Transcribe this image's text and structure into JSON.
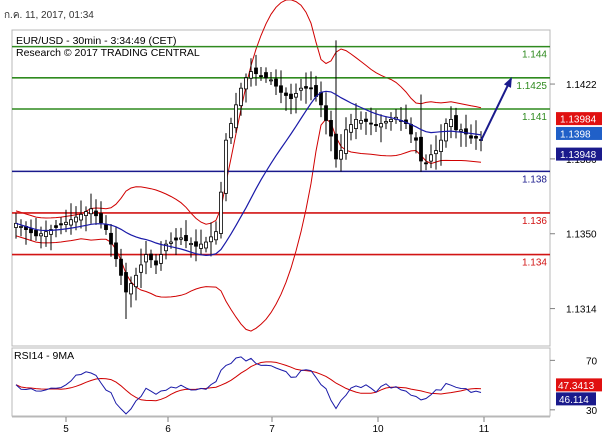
{
  "timestamp": "ก.ค. 11, 2017, 01:34",
  "colors": {
    "candle": "#000000",
    "ma": "#1a1aa8",
    "bands": "#d00000",
    "support": "#1a1a8c",
    "resistance_green": "#2f8a1f",
    "resistance_red": "#d21414",
    "arrow": "#1a1a8c",
    "rsi": "#1a1aa8",
    "rsi_signal": "#d00000",
    "tag_red": "#e01010",
    "tag_blue": "#2060c8",
    "tag_navy": "#1a1a8c"
  },
  "chart_data": {
    "type": "candlestick",
    "instrument": "EUR/USD - 30min - 3:34:49 (CET)",
    "source": "Research © 2017 TRADING CENTRAL",
    "xlabel": "",
    "ylabel": "",
    "ylim": [
      1.1296,
      1.1448
    ],
    "y_ticks": [
      "1.1422",
      "1.1386",
      "1.1350",
      "1.1314"
    ],
    "x_ticks": [
      "5",
      "6",
      "7",
      "10",
      "11"
    ],
    "levels": [
      {
        "value": 1.144,
        "label": "1.144",
        "kind": "resistance_green"
      },
      {
        "value": 1.1425,
        "label": "1.1425",
        "kind": "resistance_green"
      },
      {
        "value": 1.141,
        "label": "1.141",
        "kind": "resistance_green"
      },
      {
        "value": 1.138,
        "label": "1.138",
        "kind": "support"
      },
      {
        "value": 1.136,
        "label": "1.136",
        "kind": "resistance_red"
      },
      {
        "value": 1.134,
        "label": "1.134",
        "kind": "resistance_red"
      }
    ],
    "price_tags": [
      {
        "value": 1.13984,
        "label": "1.13984",
        "style": "tag_red"
      },
      {
        "value": 1.1398,
        "label": "1.1398",
        "style": "tag_blue"
      },
      {
        "value": 1.13948,
        "label": "1.13948",
        "style": "tag_navy"
      }
    ],
    "close_path": [
      [
        0,
        1.1355
      ],
      [
        4,
        1.1349
      ],
      [
        8,
        1.1353
      ],
      [
        12,
        1.1358
      ],
      [
        15,
        1.1362
      ],
      [
        18,
        1.1352
      ],
      [
        20,
        1.1338
      ],
      [
        22,
        1.1322
      ],
      [
        24,
        1.133
      ],
      [
        26,
        1.134
      ],
      [
        28,
        1.1335
      ],
      [
        30,
        1.1345
      ],
      [
        33,
        1.1348
      ],
      [
        36,
        1.1344
      ],
      [
        38,
        1.1346
      ],
      [
        40,
        1.1351
      ],
      [
        41,
        1.137
      ],
      [
        42,
        1.1395
      ],
      [
        43,
        1.1403
      ],
      [
        44,
        1.1412
      ],
      [
        45,
        1.142
      ],
      [
        46,
        1.1425
      ],
      [
        47,
        1.1428
      ],
      [
        49,
        1.1426
      ],
      [
        51,
        1.1424
      ],
      [
        53,
        1.1418
      ],
      [
        55,
        1.1415
      ],
      [
        57,
        1.142
      ],
      [
        59,
        1.142
      ],
      [
        61,
        1.1412
      ],
      [
        63,
        1.1397
      ],
      [
        64,
        1.1386
      ],
      [
        65,
        1.139
      ],
      [
        66,
        1.14
      ],
      [
        68,
        1.1405
      ],
      [
        70,
        1.1404
      ],
      [
        72,
        1.1402
      ],
      [
        74,
        1.1404
      ],
      [
        76,
        1.1406
      ],
      [
        78,
        1.1403
      ],
      [
        79,
        1.1398
      ],
      [
        80,
        1.1395
      ],
      [
        81,
        1.1385
      ],
      [
        82,
        1.1384
      ],
      [
        83,
        1.1388
      ],
      [
        84,
        1.139
      ],
      [
        85,
        1.1395
      ],
      [
        86,
        1.1403
      ],
      [
        87,
        1.1405
      ],
      [
        88,
        1.14
      ],
      [
        89,
        1.14
      ],
      [
        90,
        1.1398
      ],
      [
        91,
        1.1396
      ],
      [
        92,
        1.1396
      ],
      [
        93,
        1.1395
      ]
    ],
    "spikes": [
      {
        "x": 64,
        "high": 1.1443
      },
      {
        "x": 22,
        "low": 1.1309
      },
      {
        "x": 81,
        "high": 1.1417
      }
    ],
    "arrow": {
      "from": [
        93,
        1.13948
      ],
      "to": [
        99,
        1.14245
      ]
    },
    "rsi": {
      "label": "RSI14 - 9MA",
      "ylim": [
        25,
        80
      ],
      "y_ticks": [
        "70",
        "30"
      ],
      "value": 46.114,
      "value_label": "46.114",
      "ma_value": 47.3413,
      "ma_label": "47.3413",
      "path": [
        [
          0,
          50
        ],
        [
          4,
          44
        ],
        [
          8,
          48
        ],
        [
          12,
          56
        ],
        [
          15,
          60
        ],
        [
          18,
          48
        ],
        [
          20,
          36
        ],
        [
          22,
          28
        ],
        [
          24,
          38
        ],
        [
          26,
          45
        ],
        [
          28,
          42
        ],
        [
          30,
          48
        ],
        [
          33,
          50
        ],
        [
          36,
          46
        ],
        [
          38,
          48
        ],
        [
          40,
          52
        ],
        [
          41,
          62
        ],
        [
          42,
          68
        ],
        [
          43,
          70
        ],
        [
          44,
          72
        ],
        [
          45,
          73
        ],
        [
          46,
          72
        ],
        [
          47,
          71
        ],
        [
          49,
          68
        ],
        [
          51,
          66
        ],
        [
          53,
          60
        ],
        [
          55,
          58
        ],
        [
          57,
          60
        ],
        [
          59,
          60
        ],
        [
          61,
          50
        ],
        [
          63,
          40
        ],
        [
          64,
          32
        ],
        [
          65,
          37
        ],
        [
          66,
          44
        ],
        [
          68,
          50
        ],
        [
          70,
          48
        ],
        [
          72,
          46
        ],
        [
          74,
          50
        ],
        [
          76,
          50
        ],
        [
          78,
          46
        ],
        [
          79,
          44
        ],
        [
          80,
          42
        ],
        [
          81,
          38
        ],
        [
          82,
          39
        ],
        [
          83,
          42
        ],
        [
          84,
          44
        ],
        [
          85,
          48
        ],
        [
          86,
          52
        ],
        [
          87,
          52
        ],
        [
          88,
          50
        ],
        [
          89,
          49
        ],
        [
          90,
          48
        ],
        [
          91,
          46
        ],
        [
          92,
          46
        ],
        [
          93,
          46
        ]
      ]
    }
  }
}
